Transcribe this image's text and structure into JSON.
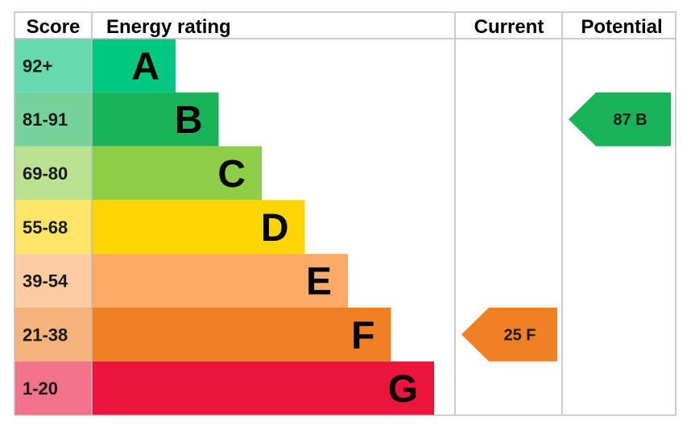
{
  "chart_data": {
    "type": "bar",
    "columns": {
      "score": "Score",
      "rating": "Energy rating",
      "current": "Current",
      "potential": "Potential"
    },
    "bands": [
      {
        "letter": "A",
        "range": "92+",
        "color": "#00c781",
        "light": "#66d9b0"
      },
      {
        "letter": "B",
        "range": "81-91",
        "color": "#19b459",
        "light": "#75d29b"
      },
      {
        "letter": "C",
        "range": "69-80",
        "color": "#8dce46",
        "light": "#bbe290"
      },
      {
        "letter": "D",
        "range": "55-68",
        "color": "#ffd500",
        "light": "#ffe566"
      },
      {
        "letter": "E",
        "range": "39-54",
        "color": "#fcaa65",
        "light": "#fdcca3"
      },
      {
        "letter": "F",
        "range": "21-38",
        "color": "#ef8023",
        "light": "#f5b37b"
      },
      {
        "letter": "G",
        "range": "1-20",
        "color": "#e9153b",
        "light": "#f27389"
      }
    ],
    "current": {
      "value": 25,
      "band": "F",
      "label": "25  F"
    },
    "potential": {
      "value": 87,
      "band": "B",
      "label": "87  B"
    }
  }
}
